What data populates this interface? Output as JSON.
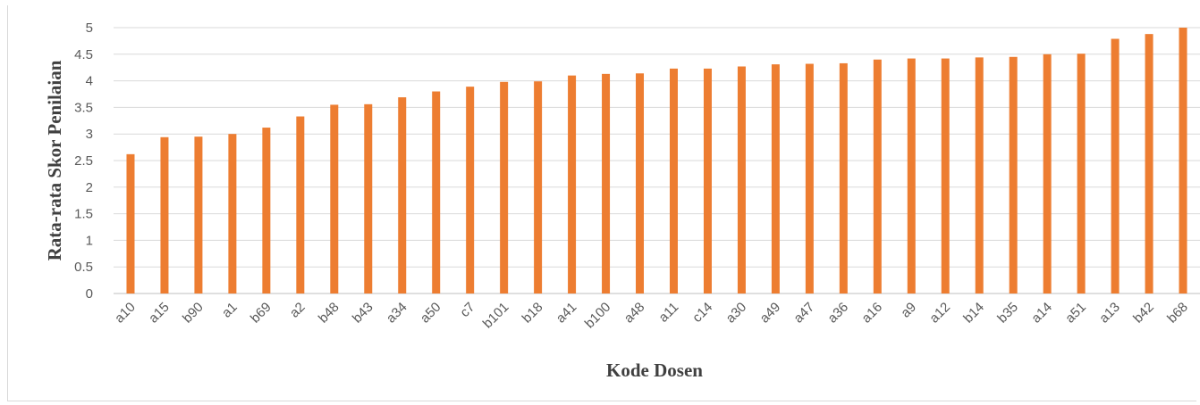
{
  "chart_data": {
    "type": "bar",
    "ylabel": "Rata-rata Skor Penilaian",
    "xlabel": "Kode Dosen",
    "ylim": [
      0,
      5
    ],
    "yticks": [
      "0",
      "0.5",
      "1",
      "1.5",
      "2",
      "2.5",
      "3",
      "3.5",
      "4",
      "4.5",
      "5"
    ],
    "grid": true,
    "legend": "none",
    "bar_color": "#ED7D31",
    "categories": [
      "a10",
      "a15",
      "b90",
      "a1",
      "b69",
      "a2",
      "b48",
      "b43",
      "a34",
      "a50",
      "c7",
      "b101",
      "b18",
      "a41",
      "b100",
      "a48",
      "a11",
      "c14",
      "a30",
      "a49",
      "a47",
      "a36",
      "a16",
      "a9",
      "a12",
      "b14",
      "b35",
      "a14",
      "a51",
      "a13",
      "b42",
      "b68"
    ],
    "values": [
      2.62,
      2.94,
      2.95,
      3.0,
      3.12,
      3.33,
      3.55,
      3.56,
      3.69,
      3.8,
      3.89,
      3.98,
      3.99,
      4.1,
      4.13,
      4.14,
      4.23,
      4.23,
      4.27,
      4.31,
      4.32,
      4.33,
      4.4,
      4.42,
      4.42,
      4.44,
      4.45,
      4.5,
      4.51,
      4.79,
      4.88,
      5.0
    ]
  }
}
